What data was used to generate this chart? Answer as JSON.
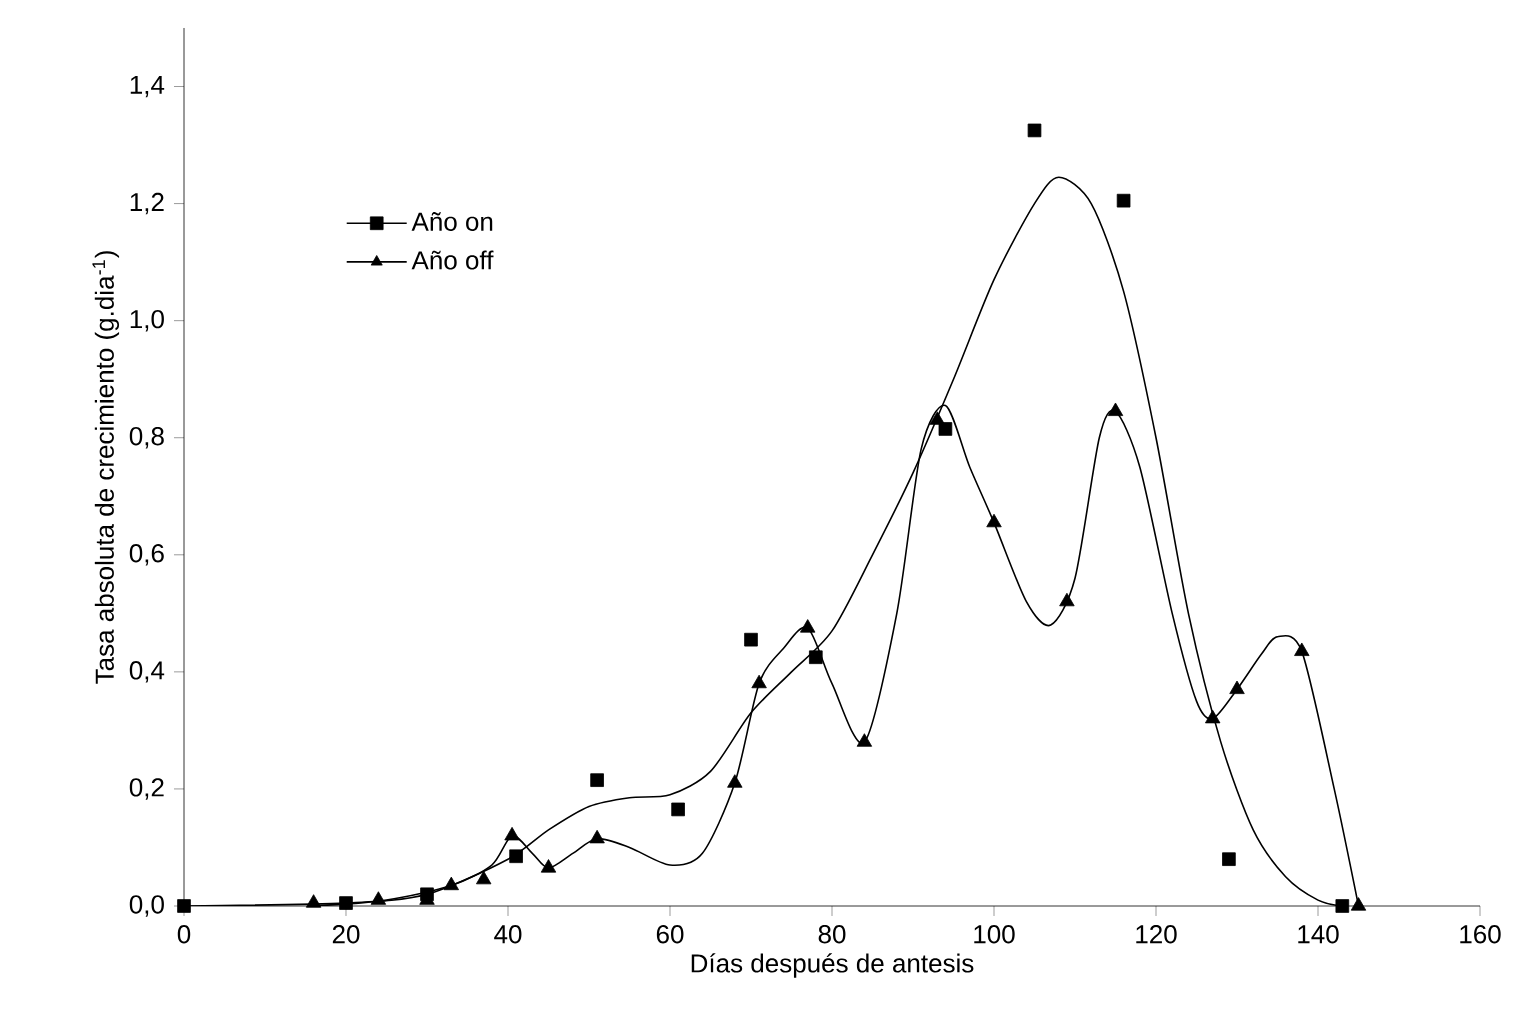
{
  "chart_data": {
    "type": "scatter",
    "xlabel": "Días después de antesis",
    "ylabel": "Tasa absoluta de  crecimiento (g.dia$^{-1}$)",
    "xlim": [
      0,
      160
    ],
    "ylim": [
      0,
      1.5
    ],
    "xticks": [
      0,
      20,
      40,
      60,
      80,
      100,
      120,
      140,
      160
    ],
    "yticks": [
      {
        "value": 0,
        "label": "0,0"
      },
      {
        "value": 0.2,
        "label": "0,2"
      },
      {
        "value": 0.4,
        "label": "0,4"
      },
      {
        "value": 0.6,
        "label": "0,6"
      },
      {
        "value": 0.8,
        "label": "0,8"
      },
      {
        "value": 1.0,
        "label": "1,0"
      },
      {
        "value": 1.2,
        "label": "1,2"
      },
      {
        "value": 1.4,
        "label": "1,4"
      }
    ],
    "legend": "top left",
    "series": [
      {
        "name": "Año on",
        "marker": "square",
        "color": "#000000",
        "x": [
          0,
          20,
          30,
          41,
          51,
          61,
          70,
          78,
          94,
          105,
          116,
          129,
          143
        ],
        "values": [
          0,
          0.005,
          0.02,
          0.085,
          0.215,
          0.165,
          0.455,
          0.425,
          0.815,
          1.325,
          1.205,
          0.08,
          0
        ]
      },
      {
        "name": "Año off",
        "marker": "triangle",
        "color": "#000000",
        "x": [
          16,
          24,
          30,
          33,
          37,
          40.5,
          45,
          51,
          68,
          71,
          77,
          84,
          93,
          100,
          109,
          115,
          127,
          130,
          138,
          145
        ],
        "values": [
          0.005,
          0.01,
          0.01,
          0.035,
          0.045,
          0.12,
          0.065,
          0.115,
          0.21,
          0.38,
          0.475,
          0.28,
          0.83,
          0.655,
          0.52,
          0.845,
          0.32,
          0.37,
          0.435,
          0
        ]
      },
      {
        "type": "line",
        "marker": "none",
        "color": "#000000",
        "x": [
          0,
          20,
          30,
          40,
          45,
          50,
          55,
          60,
          65,
          70,
          75,
          80,
          85,
          90,
          95,
          100,
          105,
          108,
          112,
          116,
          120,
          124,
          128,
          132,
          136,
          140,
          143
        ],
        "values": [
          0,
          0.005,
          0.02,
          0.08,
          0.13,
          0.17,
          0.185,
          0.19,
          0.23,
          0.33,
          0.4,
          0.47,
          0.6,
          0.74,
          0.9,
          1.07,
          1.2,
          1.245,
          1.2,
          1.05,
          0.8,
          0.5,
          0.28,
          0.13,
          0.05,
          0.01,
          0
        ]
      },
      {
        "type": "line",
        "marker": "none",
        "color": "#000000",
        "x": [
          16,
          25,
          33,
          38,
          40.5,
          43,
          45,
          48,
          51,
          55,
          60,
          64,
          68,
          71,
          74,
          77,
          80,
          84,
          88,
          91,
          94,
          97,
          100,
          104,
          107,
          110,
          113,
          115,
          118,
          122,
          125,
          127,
          130,
          133,
          135,
          138,
          142,
          145
        ],
        "values": [
          0,
          0.01,
          0.035,
          0.07,
          0.12,
          0.09,
          0.065,
          0.09,
          0.115,
          0.1,
          0.07,
          0.09,
          0.21,
          0.38,
          0.44,
          0.475,
          0.38,
          0.28,
          0.5,
          0.78,
          0.855,
          0.75,
          0.655,
          0.52,
          0.48,
          0.56,
          0.8,
          0.845,
          0.75,
          0.5,
          0.35,
          0.32,
          0.37,
          0.43,
          0.46,
          0.435,
          0.2,
          0
        ]
      }
    ]
  }
}
